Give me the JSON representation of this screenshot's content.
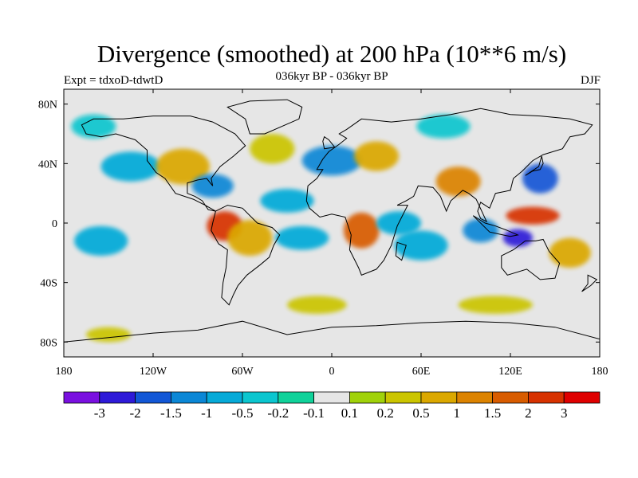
{
  "figure": {
    "title": "Divergence (smoothed) at 200 hPa (10**6 m/s)",
    "subtitle_left": "Expt = tdxoD-tdwtD",
    "subtitle_center": "036kyr BP - 036kyr BP",
    "subtitle_right": "DJF"
  },
  "chart_data": {
    "type": "heatmap",
    "projection": "cylindrical-equidistant",
    "field": "200 hPa divergence difference (smoothed)",
    "units": "10**6 m/s",
    "x_range": [
      -180,
      180
    ],
    "y_range": [
      -90,
      90
    ],
    "x_ticks": [
      {
        "value": -180,
        "label": "180"
      },
      {
        "value": -120,
        "label": "120W"
      },
      {
        "value": -60,
        "label": "60W"
      },
      {
        "value": 0,
        "label": "0"
      },
      {
        "value": 60,
        "label": "60E"
      },
      {
        "value": 120,
        "label": "120E"
      },
      {
        "value": 180,
        "label": "180"
      }
    ],
    "y_ticks": [
      {
        "value": 80,
        "label": "80N"
      },
      {
        "value": 40,
        "label": "40N"
      },
      {
        "value": 0,
        "label": "0"
      },
      {
        "value": -40,
        "label": "40S"
      },
      {
        "value": -80,
        "label": "80S"
      }
    ],
    "colorbar": {
      "levels": [
        -3,
        -2,
        -1.5,
        -1,
        -0.5,
        -0.2,
        -0.1,
        0.1,
        0.2,
        0.5,
        1,
        1.5,
        2,
        3
      ],
      "labels": [
        "-3",
        "-2",
        "-1.5",
        "-1",
        "-0.5",
        "-0.2",
        "-0.1",
        "0.1",
        "0.2",
        "0.5",
        "1",
        "1.5",
        "2",
        "3"
      ],
      "colors": [
        "#7a10e0",
        "#2e1ad8",
        "#1257d6",
        "#0b87d6",
        "#06aad8",
        "#0bc6cf",
        "#10d29a",
        "#e6e6e6",
        "#a0d20a",
        "#cbc500",
        "#dba800",
        "#dc8300",
        "#d85c00",
        "#d73200",
        "#df0000"
      ]
    },
    "features": [
      {
        "lon": -155,
        "lat": -12,
        "rx": 18,
        "ry": 10,
        "value": -1.0
      },
      {
        "lon": -135,
        "lat": 38,
        "rx": 20,
        "ry": 10,
        "value": -1.0
      },
      {
        "lon": -100,
        "lat": 38,
        "rx": 18,
        "ry": 12,
        "value": 0.6
      },
      {
        "lon": -80,
        "lat": 25,
        "rx": 14,
        "ry": 8,
        "value": -1.2
      },
      {
        "lon": -72,
        "lat": -2,
        "rx": 12,
        "ry": 10,
        "value": 2.2
      },
      {
        "lon": -55,
        "lat": -10,
        "rx": 15,
        "ry": 12,
        "value": 0.8
      },
      {
        "lon": -40,
        "lat": 50,
        "rx": 15,
        "ry": 10,
        "value": 0.4
      },
      {
        "lon": -30,
        "lat": 15,
        "rx": 18,
        "ry": 8,
        "value": -0.8
      },
      {
        "lon": -20,
        "lat": -10,
        "rx": 18,
        "ry": 8,
        "value": -0.6
      },
      {
        "lon": 0,
        "lat": 42,
        "rx": 20,
        "ry": 10,
        "value": -1.5
      },
      {
        "lon": 20,
        "lat": -5,
        "rx": 12,
        "ry": 12,
        "value": 1.6
      },
      {
        "lon": 30,
        "lat": 45,
        "rx": 15,
        "ry": 10,
        "value": 0.7
      },
      {
        "lon": 45,
        "lat": 0,
        "rx": 15,
        "ry": 8,
        "value": -0.8
      },
      {
        "lon": 60,
        "lat": -15,
        "rx": 18,
        "ry": 10,
        "value": -1.0
      },
      {
        "lon": 85,
        "lat": 28,
        "rx": 15,
        "ry": 10,
        "value": 1.3
      },
      {
        "lon": 100,
        "lat": -5,
        "rx": 12,
        "ry": 8,
        "value": -1.4
      },
      {
        "lon": 125,
        "lat": -10,
        "rx": 10,
        "ry": 6,
        "value": -2.8
      },
      {
        "lon": 135,
        "lat": 5,
        "rx": 18,
        "ry": 6,
        "value": 2.0
      },
      {
        "lon": 140,
        "lat": 30,
        "rx": 12,
        "ry": 10,
        "value": -1.8
      },
      {
        "lon": 160,
        "lat": -20,
        "rx": 14,
        "ry": 10,
        "value": 0.9
      },
      {
        "lon": -10,
        "lat": -55,
        "rx": 20,
        "ry": 6,
        "value": 0.3
      },
      {
        "lon": 110,
        "lat": -55,
        "rx": 25,
        "ry": 6,
        "value": 0.3
      },
      {
        "lon": -150,
        "lat": -75,
        "rx": 15,
        "ry": 5,
        "value": 0.2
      },
      {
        "lon": 75,
        "lat": 65,
        "rx": 18,
        "ry": 8,
        "value": -0.4
      },
      {
        "lon": -160,
        "lat": 65,
        "rx": 15,
        "ry": 8,
        "value": -0.5
      }
    ]
  }
}
